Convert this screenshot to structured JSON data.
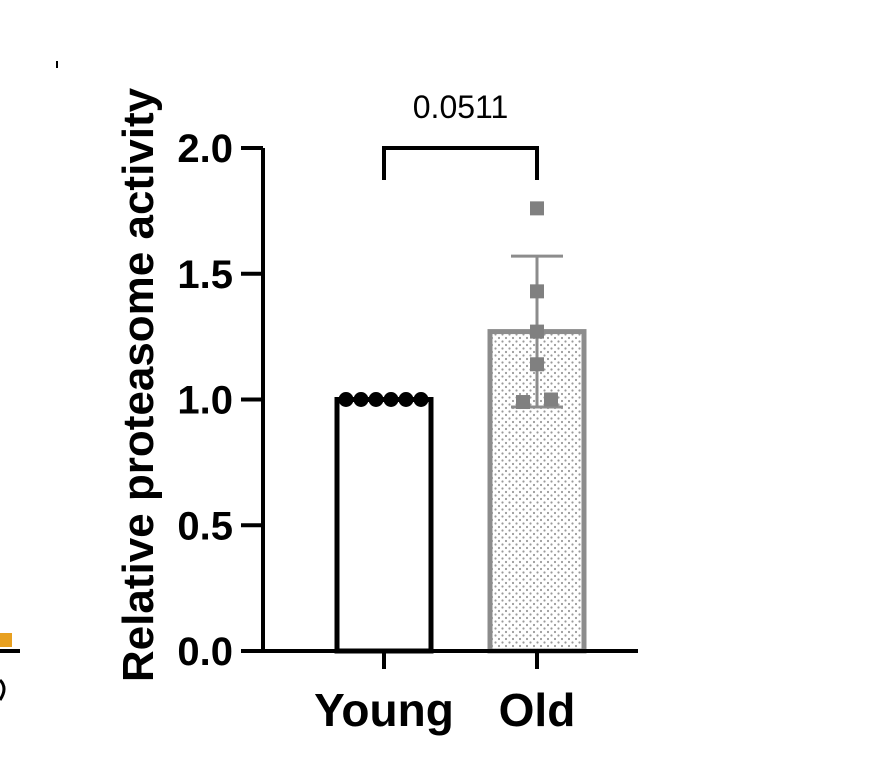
{
  "chart_data": {
    "type": "bar",
    "title": "",
    "xlabel": "",
    "ylabel": "Relative proteasome activity",
    "ylim": [
      0,
      2.0
    ],
    "yticks": [
      0.0,
      0.5,
      1.0,
      1.5,
      2.0
    ],
    "ytick_labels": [
      "0.0",
      "0.5",
      "1.0",
      "1.5",
      "2.0"
    ],
    "categories": [
      "Young",
      "Old"
    ],
    "values": [
      1.0,
      1.27
    ],
    "error": [
      0,
      0.3
    ],
    "points": [
      [
        1.0,
        1.0,
        1.0,
        1.0,
        1.0,
        1.0
      ],
      [
        1.76,
        1.43,
        1.27,
        1.14,
        0.99,
        1.0
      ]
    ],
    "bar_styles": [
      {
        "fill": "#ffffff",
        "stroke": "#000000",
        "pattern": "none",
        "marker": "circle",
        "marker_color": "#000000"
      },
      {
        "fill": "#ffffff",
        "stroke": "#8c8c8c",
        "pattern": "dots",
        "marker": "square",
        "marker_color": "#808080"
      }
    ],
    "significance": {
      "between": [
        "Young",
        "Old"
      ],
      "label": "0.0511"
    },
    "grid": false
  }
}
